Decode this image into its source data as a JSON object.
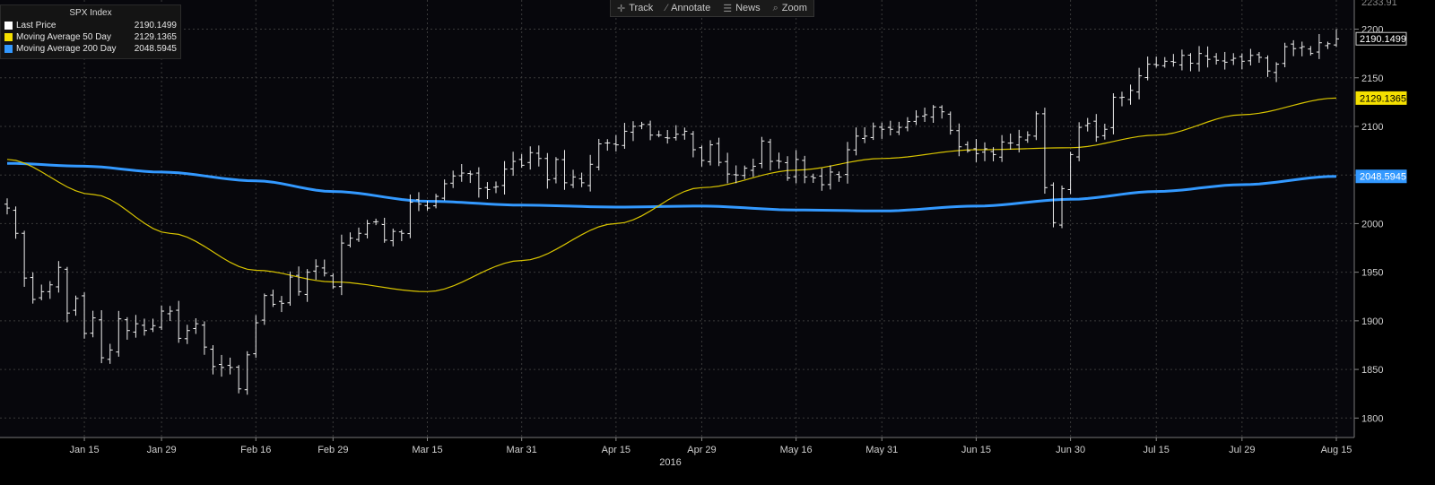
{
  "toolbar": {
    "track": {
      "label": "Track",
      "icon": "crosshair-icon"
    },
    "annotate": {
      "label": "Annotate",
      "icon": "pencil-icon"
    },
    "news": {
      "label": "News",
      "icon": "news-icon"
    },
    "zoom": {
      "label": "Zoom",
      "icon": "magnifier-icon"
    }
  },
  "legend": {
    "title": "SPX Index",
    "items": [
      {
        "name": "Last Price",
        "value": "2190.1499",
        "color": "#ffffff"
      },
      {
        "name": "Moving Average 50 Day",
        "value": "2129.1365",
        "color": "#f5e000"
      },
      {
        "name": "Moving Average 200 Day",
        "value": "2048.5945",
        "color": "#3399ff"
      }
    ]
  },
  "chart_data": {
    "type": "line",
    "subtype": "ohlc-bar",
    "title": "SPX Index",
    "xlabel": "2016",
    "ylabel": "",
    "ylim": [
      1780,
      2230
    ],
    "grid": true,
    "legend_position": "top-left",
    "x_ticks": [
      "Jan 15",
      "Jan 29",
      "Feb 16",
      "Feb 29",
      "Mar 15",
      "Mar 31",
      "Apr 15",
      "Apr 29",
      "May 16",
      "May 31",
      "Jun 15",
      "Jun 30",
      "Jul 15",
      "Jul 29",
      "Aug 15"
    ],
    "y_ticks": [
      1800,
      1850,
      1900,
      1950,
      2000,
      2050,
      2100,
      2150,
      2200
    ],
    "y_tick_top_partial": "2233.91",
    "last_value_labels": [
      {
        "series": "Last Price",
        "value": "2190.1499",
        "color": "#ffffff"
      },
      {
        "series": "Moving Average 50 Day",
        "value": "2129.1365",
        "color": "#f5e000"
      },
      {
        "series": "Moving Average 200 Day",
        "value": "2048.5945",
        "color": "#3399ff"
      }
    ],
    "x": [
      "Jan 4",
      "Jan 5",
      "Jan 6",
      "Jan 7",
      "Jan 8",
      "Jan 11",
      "Jan 12",
      "Jan 13",
      "Jan 14",
      "Jan 15",
      "Jan 19",
      "Jan 20",
      "Jan 21",
      "Jan 22",
      "Jan 25",
      "Jan 26",
      "Jan 27",
      "Jan 28",
      "Jan 29",
      "Feb 1",
      "Feb 2",
      "Feb 3",
      "Feb 4",
      "Feb 5",
      "Feb 8",
      "Feb 9",
      "Feb 10",
      "Feb 11",
      "Feb 12",
      "Feb 16",
      "Feb 17",
      "Feb 18",
      "Feb 19",
      "Feb 22",
      "Feb 23",
      "Feb 24",
      "Feb 25",
      "Feb 26",
      "Feb 29",
      "Mar 1",
      "Mar 2",
      "Mar 3",
      "Mar 4",
      "Mar 7",
      "Mar 8",
      "Mar 9",
      "Mar 10",
      "Mar 11",
      "Mar 14",
      "Mar 15",
      "Mar 16",
      "Mar 17",
      "Mar 18",
      "Mar 21",
      "Mar 22",
      "Mar 23",
      "Mar 24",
      "Mar 28",
      "Mar 29",
      "Mar 30",
      "Mar 31",
      "Apr 1",
      "Apr 4",
      "Apr 5",
      "Apr 6",
      "Apr 7",
      "Apr 8",
      "Apr 11",
      "Apr 12",
      "Apr 13",
      "Apr 14",
      "Apr 15",
      "Apr 18",
      "Apr 19",
      "Apr 20",
      "Apr 21",
      "Apr 22",
      "Apr 25",
      "Apr 26",
      "Apr 27",
      "Apr 28",
      "Apr 29",
      "May 2",
      "May 3",
      "May 4",
      "May 5",
      "May 6",
      "May 9",
      "May 10",
      "May 11",
      "May 12",
      "May 13",
      "May 16",
      "May 17",
      "May 18",
      "May 19",
      "May 20",
      "May 23",
      "May 24",
      "May 25",
      "May 26",
      "May 27",
      "May 31",
      "Jun 1",
      "Jun 2",
      "Jun 3",
      "Jun 6",
      "Jun 7",
      "Jun 8",
      "Jun 9",
      "Jun 10",
      "Jun 13",
      "Jun 14",
      "Jun 15",
      "Jun 16",
      "Jun 17",
      "Jun 20",
      "Jun 21",
      "Jun 22",
      "Jun 23",
      "Jun 24",
      "Jun 27",
      "Jun 28",
      "Jun 29",
      "Jun 30",
      "Jul 1",
      "Jul 5",
      "Jul 6",
      "Jul 7",
      "Jul 8",
      "Jul 11",
      "Jul 12",
      "Jul 13",
      "Jul 14",
      "Jul 15",
      "Jul 18",
      "Jul 19",
      "Jul 20",
      "Jul 21",
      "Jul 22",
      "Jul 25",
      "Jul 26",
      "Jul 27",
      "Jul 28",
      "Jul 29",
      "Aug 1",
      "Aug 2",
      "Aug 3",
      "Aug 4",
      "Aug 5",
      "Aug 8",
      "Aug 9",
      "Aug 10",
      "Aug 11",
      "Aug 12",
      "Aug 15"
    ],
    "close": [
      2016,
      1990,
      1944,
      1922,
      1930,
      1937,
      1955,
      1908,
      1923,
      1887,
      1903,
      1862,
      1870,
      1902,
      1890,
      1897,
      1890,
      1895,
      1910,
      1910,
      1882,
      1890,
      1897,
      1873,
      1853,
      1852,
      1852,
      1830,
      1865,
      1898,
      1926,
      1917,
      1918,
      1945,
      1930,
      1950,
      1956,
      1949,
      1935,
      1980,
      1985,
      1990,
      2000,
      2002,
      1983,
      1992,
      1990,
      2022,
      2020,
      2016,
      2028,
      2041,
      2049,
      2052,
      2051,
      2036,
      2035,
      2038,
      2056,
      2064,
      2060,
      2073,
      2067,
      2045,
      2066,
      2042,
      2048,
      2042,
      2061,
      2082,
      2083,
      2081,
      2095,
      2100,
      2102,
      2091,
      2091,
      2088,
      2092,
      2095,
      2076,
      2065,
      2081,
      2063,
      2051,
      2050,
      2057,
      2059,
      2085,
      2064,
      2064,
      2047,
      2066,
      2048,
      2047,
      2040,
      2053,
      2048,
      2076,
      2090,
      2090,
      2100,
      2097,
      2097,
      2099,
      2105,
      2110,
      2112,
      2120,
      2115,
      2096,
      2079,
      2075,
      2072,
      2077,
      2071,
      2084,
      2083,
      2089,
      2091,
      2113,
      2037,
      2001,
      2036,
      2071,
      2099,
      2103,
      2089,
      2097,
      2130,
      2130,
      2137,
      2152,
      2164,
      2163,
      2167,
      2166,
      2173,
      2165,
      2175,
      2169,
      2168,
      2166,
      2170,
      2167,
      2173,
      2171,
      2157,
      2164,
      2182,
      2180,
      2182,
      2175,
      2186,
      2185,
      2190
    ],
    "series": [
      {
        "name": "Last Price",
        "values": "close"
      },
      {
        "name": "Moving Average 50 Day",
        "keyframes": [
          [
            "Jan 4",
            2066
          ],
          [
            "Jan 19",
            2030
          ],
          [
            "Feb 1",
            1990
          ],
          [
            "Feb 16",
            1952
          ],
          [
            "Feb 29",
            1940
          ],
          [
            "Mar 15",
            1930
          ],
          [
            "Mar 31",
            1962
          ],
          [
            "Apr 15",
            2000
          ],
          [
            "Apr 29",
            2037
          ],
          [
            "May 16",
            2055
          ],
          [
            "May 31",
            2067
          ],
          [
            "Jun 15",
            2076
          ],
          [
            "Jun 30",
            2078
          ],
          [
            "Jul 15",
            2091
          ],
          [
            "Jul 29",
            2112
          ],
          [
            "Aug 15",
            2129.1365
          ]
        ]
      },
      {
        "name": "Moving Average 200 Day",
        "keyframes": [
          [
            "Jan 4",
            2062
          ],
          [
            "Jan 15",
            2059
          ],
          [
            "Jan 29",
            2053
          ],
          [
            "Feb 16",
            2044
          ],
          [
            "Feb 29",
            2033
          ],
          [
            "Mar 15",
            2023
          ],
          [
            "Mar 31",
            2019
          ],
          [
            "Apr 15",
            2017
          ],
          [
            "Apr 29",
            2018
          ],
          [
            "May 16",
            2014
          ],
          [
            "May 31",
            2013
          ],
          [
            "Jun 15",
            2018
          ],
          [
            "Jun 30",
            2025
          ],
          [
            "Jul 15",
            2033
          ],
          [
            "Jul 29",
            2040
          ],
          [
            "Aug 15",
            2048.5945
          ]
        ]
      }
    ]
  }
}
